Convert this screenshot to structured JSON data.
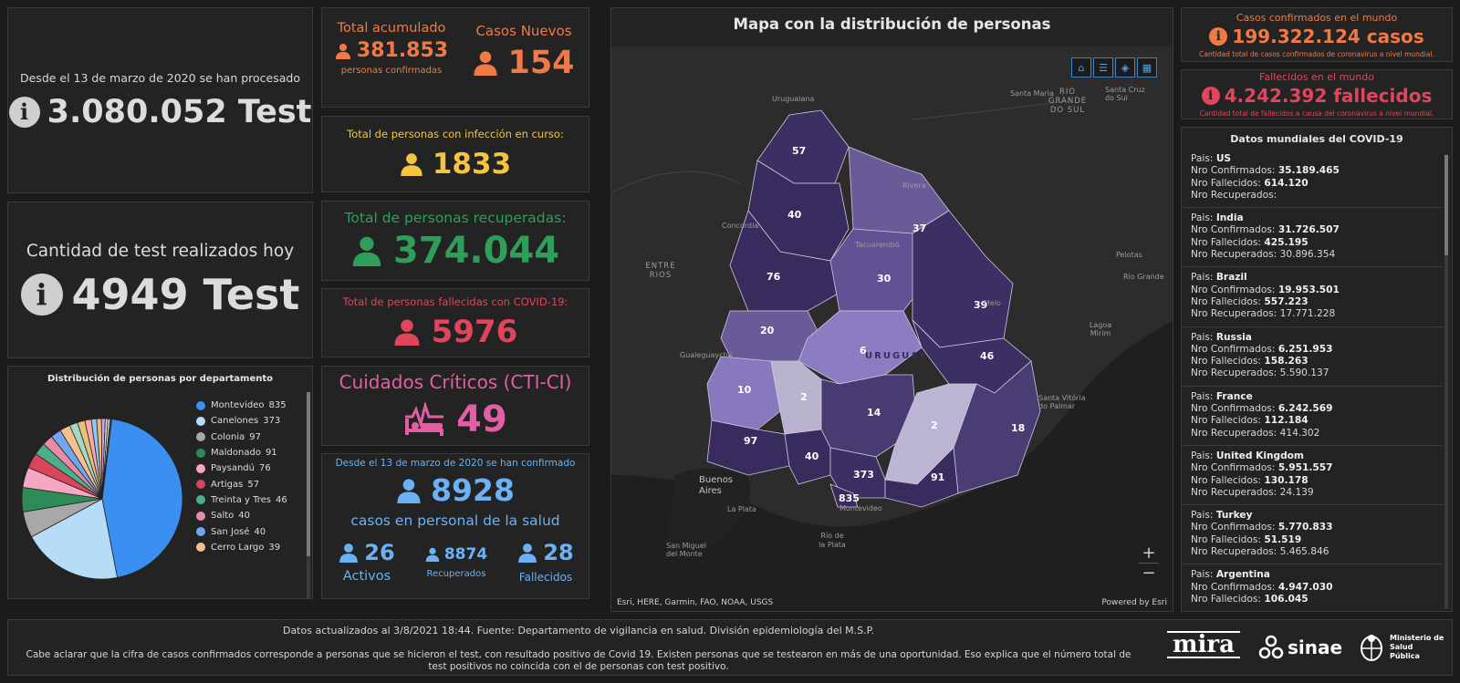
{
  "tests_total": {
    "caption": "Desde el 13 de marzo de 2020 se han procesado",
    "value": "3.080.052 Test"
  },
  "tests_today": {
    "caption": "Cantidad de test realizados hoy",
    "value": "4949 Test"
  },
  "pie": {
    "title": "Distribución de personas por departamento",
    "items": [
      {
        "label": "Montevideo",
        "value": "835",
        "color": "#3b8ff0"
      },
      {
        "label": "Canelones",
        "value": "373",
        "color": "#b7dcf8"
      },
      {
        "label": "Colonia",
        "value": "97",
        "color": "#a8a8a8"
      },
      {
        "label": "Maldonado",
        "value": "91",
        "color": "#2e8b57"
      },
      {
        "label": "Paysandú",
        "value": "76",
        "color": "#f7a7c2"
      },
      {
        "label": "Artigas",
        "value": "57",
        "color": "#d8455c"
      },
      {
        "label": "Treinta y Tres",
        "value": "46",
        "color": "#4caf8a"
      },
      {
        "label": "Salto",
        "value": "40",
        "color": "#e88ba5"
      },
      {
        "label": "San José",
        "value": "40",
        "color": "#6fa8f0"
      },
      {
        "label": "Cerro Largo",
        "value": "39",
        "color": "#f7c08a"
      }
    ]
  },
  "acumulado": {
    "title": "Total acumulado",
    "value": "381.853",
    "sub": "personas confirmadas",
    "color": "#f07a45"
  },
  "nuevos": {
    "title": "Casos Nuevos",
    "value": "154",
    "color": "#f07a45"
  },
  "en_curso": {
    "title": "Total de personas con infección en curso:",
    "value": "1833",
    "color": "#f5c542"
  },
  "recuperadas": {
    "title": "Total de personas recuperadas:",
    "value": "374.044",
    "color": "#2e9e5a"
  },
  "fallecidas": {
    "title": "Total de personas fallecidas con COVID-19:",
    "value": "5976",
    "color": "#e0455c"
  },
  "cti": {
    "title": "Cuidados Críticos (CTI-CI)",
    "value": "49",
    "color": "#e25fa4"
  },
  "salud": {
    "caption": "Desde el 13 de marzo de 2020 se han confirmado",
    "value": "8928",
    "sub": "casos en personal de la salud",
    "activos_value": "26",
    "activos_label": "Activos",
    "recuperados_value": "8874",
    "recuperados_label": "Recuperados",
    "fallecidos_value": "28",
    "fallecidos_label": "Fallecidos",
    "color": "#6ab2f5"
  },
  "map": {
    "title": "Mapa con la distribución de personas",
    "attribution": "Esri, HERE, Garmin, FAO, NOAA, USGS",
    "powered": "Powered by Esri",
    "zoom_in": "+",
    "zoom_out": "−",
    "country_label": "URUGUAY",
    "places": [
      "Uruguaiana",
      "Santa Maria",
      "Santa Cruz do Sul",
      "RIO GRANDE DO SUL",
      "Rivera",
      "Concordia",
      "Tacuarembó",
      "Pelotas",
      "Rio Grande",
      "ENTRE RIOS",
      "Melo",
      "Lagoa Mirim",
      "Gualeguaychú",
      "Santa Vitória do Palmar",
      "Buenos Aires",
      "La Plata",
      "Montevideo",
      "Río de la Plata",
      "San Miguel del Monte"
    ],
    "departments": [
      "57",
      "40",
      "37",
      "76",
      "30",
      "39",
      "20",
      "6",
      "46",
      "10",
      "2",
      "14",
      "2",
      "18",
      "97",
      "40",
      "373",
      "91",
      "835"
    ]
  },
  "world_confirmed": {
    "title": "Casos confirmados en el mundo",
    "value": "199.322.124 casos",
    "sub": "Cantidad total de casos confirmados de coronavirus a nivel mundial.",
    "color": "#f07a45"
  },
  "world_deaths": {
    "title": "Fallecidos en el mundo",
    "value": "4.242.392 fallecidos",
    "sub": "Cantidad total de fallecidos a causa del coronavirus a nivel mundial.",
    "color": "#e0455c"
  },
  "world_list": {
    "title": "Datos mundiales del COVID-19",
    "labels": {
      "pais": "Pais: ",
      "conf": "Nro Confirmados: ",
      "fall": "Nro Fallecidos: ",
      "recu": "Nro Recuperados: "
    },
    "countries": [
      {
        "name": "US",
        "confirmed": "35.189.465",
        "deaths": "614.120",
        "recovered": ""
      },
      {
        "name": "India",
        "confirmed": "31.726.507",
        "deaths": "425.195",
        "recovered": "30.896.354"
      },
      {
        "name": "Brazil",
        "confirmed": "19.953.501",
        "deaths": "557.223",
        "recovered": "17.771.228"
      },
      {
        "name": "Russia",
        "confirmed": "6.251.953",
        "deaths": "158.263",
        "recovered": "5.590.137"
      },
      {
        "name": "France",
        "confirmed": "6.242.569",
        "deaths": "112.184",
        "recovered": "414.302"
      },
      {
        "name": "United Kingdom",
        "confirmed": "5.951.557",
        "deaths": "130.178",
        "recovered": "24.139"
      },
      {
        "name": "Turkey",
        "confirmed": "5.770.833",
        "deaths": "51.519",
        "recovered": "5.465.846"
      },
      {
        "name": "Argentina",
        "confirmed": "4.947.030",
        "deaths": "106.045",
        "recovered": ""
      }
    ]
  },
  "footer": {
    "line1": "Datos actualizados al 3/8/2021 18:44. Fuente: Departamento de vigilancia en salud. División epidemiología del M.S.P.",
    "line2": "Cabe aclarar que la cifra de casos confirmados corresponde a personas que se hicieron el test, con resultado positivo de Covid 19. Existen personas que se testearon en más de una oportunidad. Eso explica que el número total de test positivos no coincida con el de personas con test positivo.",
    "logo_mira": "mira",
    "logo_sinae": "sinae",
    "logo_msp": "Ministerio de Salud Pública"
  }
}
